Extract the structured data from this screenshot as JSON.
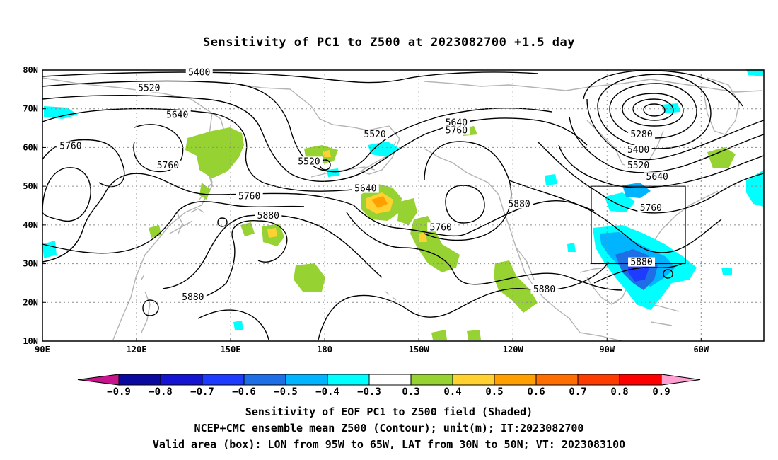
{
  "title": "Sensitivity of PC1 to Z500 at 2023082700 +1.5 day",
  "map": {
    "lon_ticks": [
      "90E",
      "120E",
      "150E",
      "180",
      "150W",
      "120W",
      "90W",
      "60W"
    ],
    "lat_ticks": [
      "80N",
      "70N",
      "60N",
      "50N",
      "40N",
      "30N",
      "20N",
      "10N"
    ],
    "contour_labels": [
      {
        "text": "5400",
        "lon": 140,
        "lat": 79
      },
      {
        "text": "5520",
        "lon": 124,
        "lat": 75
      },
      {
        "text": "5640",
        "lon": 133,
        "lat": 68
      },
      {
        "text": "5760",
        "lon": 99,
        "lat": 60
      },
      {
        "text": "5760",
        "lon": 130,
        "lat": 55
      },
      {
        "text": "5520",
        "lon": 175,
        "lat": 56
      },
      {
        "text": "5520",
        "lon": 196,
        "lat": 63
      },
      {
        "text": "5640",
        "lon": 222,
        "lat": 66
      },
      {
        "text": "5760",
        "lon": 222,
        "lat": 64
      },
      {
        "text": "5640",
        "lon": 193,
        "lat": 49
      },
      {
        "text": "5760",
        "lon": 156,
        "lat": 47
      },
      {
        "text": "5880",
        "lon": 162,
        "lat": 42
      },
      {
        "text": "5760",
        "lon": 217,
        "lat": 39
      },
      {
        "text": "5880",
        "lon": 242,
        "lat": 45
      },
      {
        "text": "5880",
        "lon": 138,
        "lat": 21
      },
      {
        "text": "5880",
        "lon": 250,
        "lat": 23
      },
      {
        "text": "5280",
        "lon": 281,
        "lat": 63
      },
      {
        "text": "5400",
        "lon": 280,
        "lat": 59
      },
      {
        "text": "5520",
        "lon": 280,
        "lat": 55
      },
      {
        "text": "5640",
        "lon": 286,
        "lat": 52
      },
      {
        "text": "5760",
        "lon": 284,
        "lat": 44
      },
      {
        "text": "5880",
        "lon": 281,
        "lat": 30
      }
    ],
    "valid_box": {
      "lon_west": 265,
      "lon_east": 295,
      "lat_south": 30,
      "lat_north": 50
    },
    "colors": {
      "contour": "#000000",
      "coastline": "#b4b4b4",
      "grid": "#8c8c8c",
      "box": "#000000"
    }
  },
  "colorbar": {
    "labels": [
      "−0.9",
      "−0.8",
      "−0.7",
      "−0.6",
      "−0.5",
      "−0.4",
      "−0.3",
      "0.3",
      "0.4",
      "0.5",
      "0.6",
      "0.7",
      "0.8",
      "0.9"
    ],
    "colors": [
      "#0a0aa0",
      "#1414d2",
      "#1e3cff",
      "#1e6ee6",
      "#00b4ff",
      "#00ffff",
      "#ffffff",
      "#96d232",
      "#ffd232",
      "#ffa000",
      "#ff6e00",
      "#ff3c00",
      "#ff0000"
    ],
    "low_end_color": "#c8148c",
    "high_end_color": "#ffa0d2"
  },
  "captions": [
    "Sensitivity of EOF PC1 to Z500 field (Shaded)",
    "NCEP+CMC ensemble mean Z500 (Contour); unit(m); IT:2023082700",
    "Valid area (box): LON from 95W to 65W, LAT from 30N to 50N; VT: 2023083100"
  ]
}
